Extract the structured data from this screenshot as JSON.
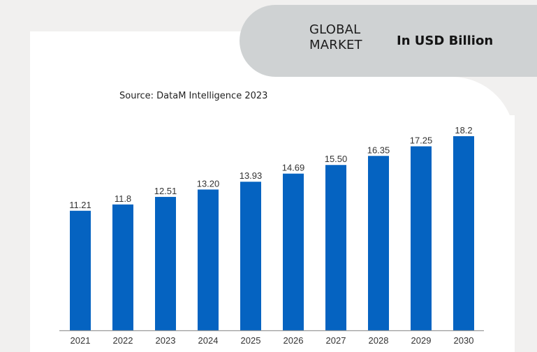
{
  "header": {
    "title_line1": "GLOBAL",
    "title_line2": "MARKET",
    "unit": "In USD Billion"
  },
  "source": "Source: DataM Intelligence 2023",
  "colors": {
    "bar": "#0563c1",
    "axis": "#9a9a9a",
    "background": "#f1f0ef",
    "pill": "#cfd2d3"
  },
  "chart_data": {
    "type": "bar",
    "title": "GLOBAL MARKET",
    "subtitle": "In USD Billion",
    "xlabel": "",
    "ylabel": "",
    "categories": [
      "2021",
      "2022",
      "2023",
      "2024",
      "2025",
      "2026",
      "2027",
      "2028",
      "2029",
      "2030"
    ],
    "values": [
      11.21,
      11.8,
      12.51,
      13.2,
      13.93,
      14.69,
      15.5,
      16.35,
      17.25,
      18.2
    ],
    "value_labels": [
      "11.21",
      "11.8",
      "12.51",
      "13.20",
      "13.93",
      "14.69",
      "15.50",
      "16.35",
      "17.25",
      "18.2"
    ],
    "ylim": [
      0,
      18.2
    ],
    "grid": false,
    "legend": "none"
  }
}
